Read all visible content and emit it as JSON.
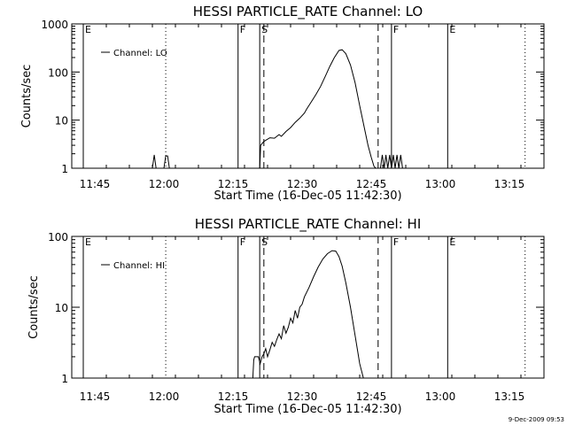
{
  "chart_data": [
    {
      "type": "line",
      "title": "HESSI PARTICLE_RATE Channel: LO",
      "xlabel": "Start Time (16-Dec-05 11:42:30)",
      "ylabel": "Counts/sec",
      "yscale": "log",
      "xlim_min": [
        -2.5,
        100
      ],
      "ylim": [
        1,
        1000
      ],
      "x_ticks": [
        {
          "min": 2.5,
          "label": "11:45"
        },
        {
          "min": 17.5,
          "label": "12:00"
        },
        {
          "min": 32.5,
          "label": "12:15"
        },
        {
          "min": 47.5,
          "label": "12:30"
        },
        {
          "min": 62.5,
          "label": "12:45"
        },
        {
          "min": 77.5,
          "label": "13:00"
        },
        {
          "min": 92.5,
          "label": "13:15"
        }
      ],
      "y_ticks": [
        {
          "v": 1,
          "label": "1"
        },
        {
          "v": 10,
          "label": "10"
        },
        {
          "v": 100,
          "label": "100"
        },
        {
          "v": 1000,
          "label": "1000"
        }
      ],
      "legend": {
        "label": "Channel: LO",
        "position": "top-left"
      },
      "markers": [
        {
          "min": 0,
          "label": "E",
          "style": "solid"
        },
        {
          "min": 33.6,
          "label": "F",
          "style": "solid"
        },
        {
          "min": 38.3,
          "label": "S",
          "style": "solid"
        },
        {
          "min": 39.2,
          "label": "",
          "style": "dashed"
        },
        {
          "min": 64.0,
          "label": "",
          "style": "dashed"
        },
        {
          "min": 66.9,
          "label": "F",
          "style": "solid"
        },
        {
          "min": 79.1,
          "label": "E",
          "style": "solid"
        },
        {
          "min": 17.9,
          "label": "",
          "style": "dotted"
        },
        {
          "min": 95.9,
          "label": "",
          "style": "dotted"
        }
      ],
      "series": [
        {
          "x": [
            15.0,
            15.4,
            15.8,
            17.5,
            17.9,
            18.3,
            18.7,
            38.3,
            38.5,
            39.2,
            40.5,
            41.5,
            42.5,
            43.0,
            44.0,
            45.0,
            46.0,
            47.0,
            48.0,
            48.5,
            49.5,
            50.5,
            51.5,
            52.5,
            53.5,
            54.5,
            55.5,
            56.2,
            57.0,
            58.0,
            59.0,
            60.0,
            61.0,
            61.8,
            62.5,
            63.1,
            63.5,
            64.5,
            64.9,
            65.3,
            65.7,
            66.1,
            66.5,
            66.9,
            67.3,
            67.7,
            68.1,
            68.5,
            68.9,
            69.3
          ],
          "y": [
            1,
            1.9,
            1,
            1,
            1.8,
            1.8,
            1,
            1,
            3,
            3.6,
            4.3,
            4.2,
            5,
            4.6,
            5.8,
            7,
            9,
            11,
            14,
            17,
            24,
            34,
            50,
            80,
            130,
            200,
            280,
            290,
            240,
            140,
            60,
            20,
            7,
            3,
            1.7,
            1.1,
            1,
            1,
            1.9,
            1,
            1.9,
            1,
            1.9,
            1,
            1.9,
            1,
            1.9,
            1,
            1.9,
            1
          ]
        }
      ]
    },
    {
      "type": "line",
      "title": "HESSI PARTICLE_RATE Channel: HI",
      "xlabel": "Start Time (16-Dec-05 11:42:30)",
      "ylabel": "Counts/sec",
      "yscale": "log",
      "xlim_min": [
        -2.5,
        100
      ],
      "ylim": [
        1,
        100
      ],
      "x_ticks": [
        {
          "min": 2.5,
          "label": "11:45"
        },
        {
          "min": 17.5,
          "label": "12:00"
        },
        {
          "min": 32.5,
          "label": "12:15"
        },
        {
          "min": 47.5,
          "label": "12:30"
        },
        {
          "min": 62.5,
          "label": "12:45"
        },
        {
          "min": 77.5,
          "label": "13:00"
        },
        {
          "min": 92.5,
          "label": "13:15"
        }
      ],
      "y_ticks": [
        {
          "v": 1,
          "label": "1"
        },
        {
          "v": 10,
          "label": "10"
        },
        {
          "v": 100,
          "label": "100"
        }
      ],
      "legend": {
        "label": "Channel: HI",
        "position": "top-left"
      },
      "markers": [
        {
          "min": 0,
          "label": "E",
          "style": "solid"
        },
        {
          "min": 33.6,
          "label": "F",
          "style": "solid"
        },
        {
          "min": 38.3,
          "label": "S",
          "style": "solid"
        },
        {
          "min": 39.2,
          "label": "",
          "style": "dashed"
        },
        {
          "min": 64.0,
          "label": "",
          "style": "dashed"
        },
        {
          "min": 66.9,
          "label": "F",
          "style": "solid"
        },
        {
          "min": 79.1,
          "label": "E",
          "style": "solid"
        },
        {
          "min": 17.9,
          "label": "",
          "style": "dotted"
        },
        {
          "min": 95.9,
          "label": "",
          "style": "dotted"
        }
      ],
      "series": [
        {
          "x": [
            36.8,
            37.0,
            37.2,
            37.6,
            38.0,
            38.4,
            38.8,
            39.2,
            39.6,
            40.0,
            40.5,
            41.0,
            41.5,
            42.0,
            42.5,
            43.0,
            43.5,
            44.0,
            44.5,
            45.0,
            45.5,
            46.0,
            46.5,
            47.0,
            47.5,
            48.0,
            49.0,
            50.0,
            51.0,
            52.0,
            53.0,
            54.0,
            54.8,
            55.5,
            56.2,
            57.0,
            58.0,
            59.0,
            60.0,
            60.8
          ],
          "y": [
            1,
            1.8,
            2.0,
            2.0,
            2.0,
            1.6,
            2.0,
            2.2,
            2.6,
            2.0,
            2.5,
            3.2,
            2.8,
            3.5,
            4.2,
            3.6,
            5.5,
            4.3,
            5.2,
            7.0,
            6.0,
            9.0,
            7.0,
            10,
            11,
            14,
            19,
            27,
            37,
            48,
            57,
            63,
            62,
            52,
            38,
            22,
            10,
            4,
            1.6,
            1
          ]
        }
      ]
    }
  ],
  "timestamp": "9-Dec-2009 09:53"
}
